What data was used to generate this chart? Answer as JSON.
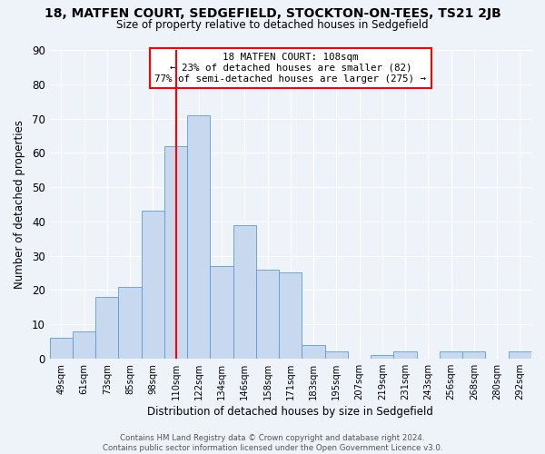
{
  "title_line1": "18, MATFEN COURT, SEDGEFIELD, STOCKTON-ON-TEES, TS21 2JB",
  "title_line2": "Size of property relative to detached houses in Sedgefield",
  "xlabel": "Distribution of detached houses by size in Sedgefield",
  "ylabel": "Number of detached properties",
  "bar_labels": [
    "49sqm",
    "61sqm",
    "73sqm",
    "85sqm",
    "98sqm",
    "110sqm",
    "122sqm",
    "134sqm",
    "146sqm",
    "158sqm",
    "171sqm",
    "183sqm",
    "195sqm",
    "207sqm",
    "219sqm",
    "231sqm",
    "243sqm",
    "256sqm",
    "268sqm",
    "280sqm",
    "292sqm"
  ],
  "bar_values": [
    6,
    8,
    18,
    21,
    43,
    62,
    71,
    27,
    39,
    26,
    25,
    4,
    2,
    0,
    1,
    2,
    0,
    2,
    2,
    0,
    2
  ],
  "bar_color": "#c8d9ef",
  "bar_edge_color": "#5b9bd5",
  "vline_x_index": 5,
  "vline_color": "red",
  "annotation_title": "18 MATFEN COURT: 108sqm",
  "annotation_line2": "← 23% of detached houses are smaller (82)",
  "annotation_line3": "77% of semi-detached houses are larger (275) →",
  "annotation_box_color": "white",
  "annotation_box_edge": "red",
  "ylim": [
    0,
    90
  ],
  "yticks": [
    0,
    10,
    20,
    30,
    40,
    50,
    60,
    70,
    80,
    90
  ],
  "footer_line1": "Contains HM Land Registry data © Crown copyright and database right 2024.",
  "footer_line2": "Contains public sector information licensed under the Open Government Licence v3.0.",
  "bg_color": "#eef2f9",
  "plot_bg_color": "#eef2f9",
  "grid_color": "#ffffff",
  "tick_color": "#333333"
}
